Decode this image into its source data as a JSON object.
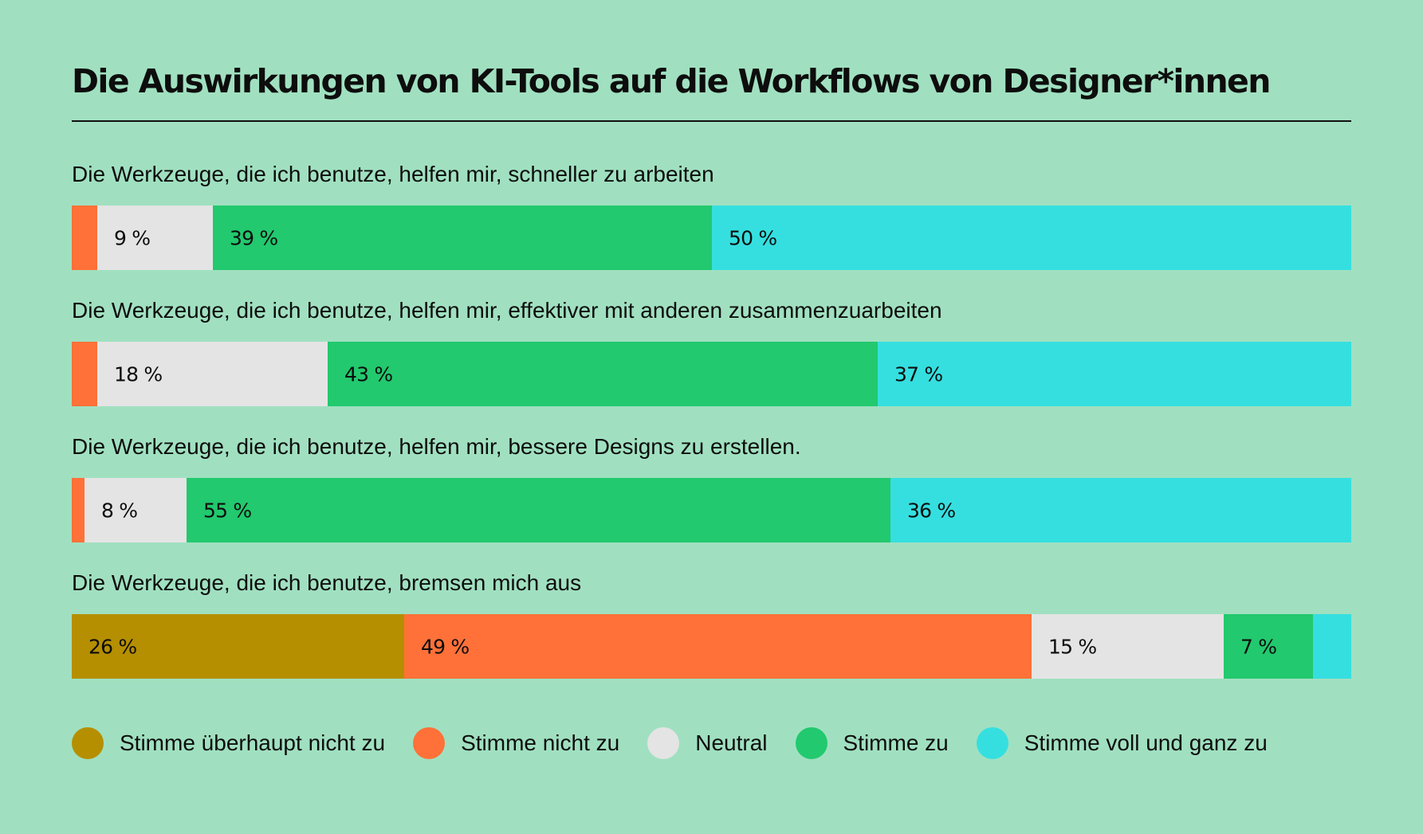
{
  "chart_data": {
    "type": "bar",
    "orientation": "horizontal",
    "stacked": true,
    "title": "Die Auswirkungen von KI-Tools auf die Workflows von Designer*innen",
    "categories": [
      "Die Werkzeuge, die ich benutze, helfen mir, schneller zu arbeiten",
      "Die Werkzeuge, die ich benutze, helfen mir, effektiver mit anderen zusammenzuarbeiten",
      "Die Werkzeuge, die ich benutze, helfen mir, bessere Designs zu erstellen.",
      "Die Werkzeuge, die ich benutze, bremsen mich aus"
    ],
    "series": [
      {
        "name": "Stimme überhaupt nicht zu",
        "color": "#b58f00",
        "values": [
          0,
          0,
          0,
          26
        ],
        "labels": [
          "",
          "",
          "",
          "26 %"
        ]
      },
      {
        "name": "Stimme nicht zu",
        "color": "#ff7138",
        "values": [
          2,
          2,
          1,
          49
        ],
        "labels": [
          "",
          "",
          "",
          "49 %"
        ]
      },
      {
        "name": "Neutral",
        "color": "#e4e4e4",
        "values": [
          9,
          18,
          8,
          15
        ],
        "labels": [
          "9 %",
          "18 %",
          "8 %",
          "15 %"
        ]
      },
      {
        "name": "Stimme zu",
        "color": "#22c96e",
        "values": [
          39,
          43,
          55,
          7
        ],
        "labels": [
          "39 %",
          "43 %",
          "55 %",
          "7 %"
        ]
      },
      {
        "name": "Stimme voll und ganz zu",
        "color": "#35dfe0",
        "values": [
          50,
          37,
          36,
          3
        ],
        "labels": [
          "50 %",
          "37 %",
          "36 %",
          ""
        ]
      }
    ],
    "xlim": [
      0,
      100
    ],
    "legend": "bottom"
  }
}
